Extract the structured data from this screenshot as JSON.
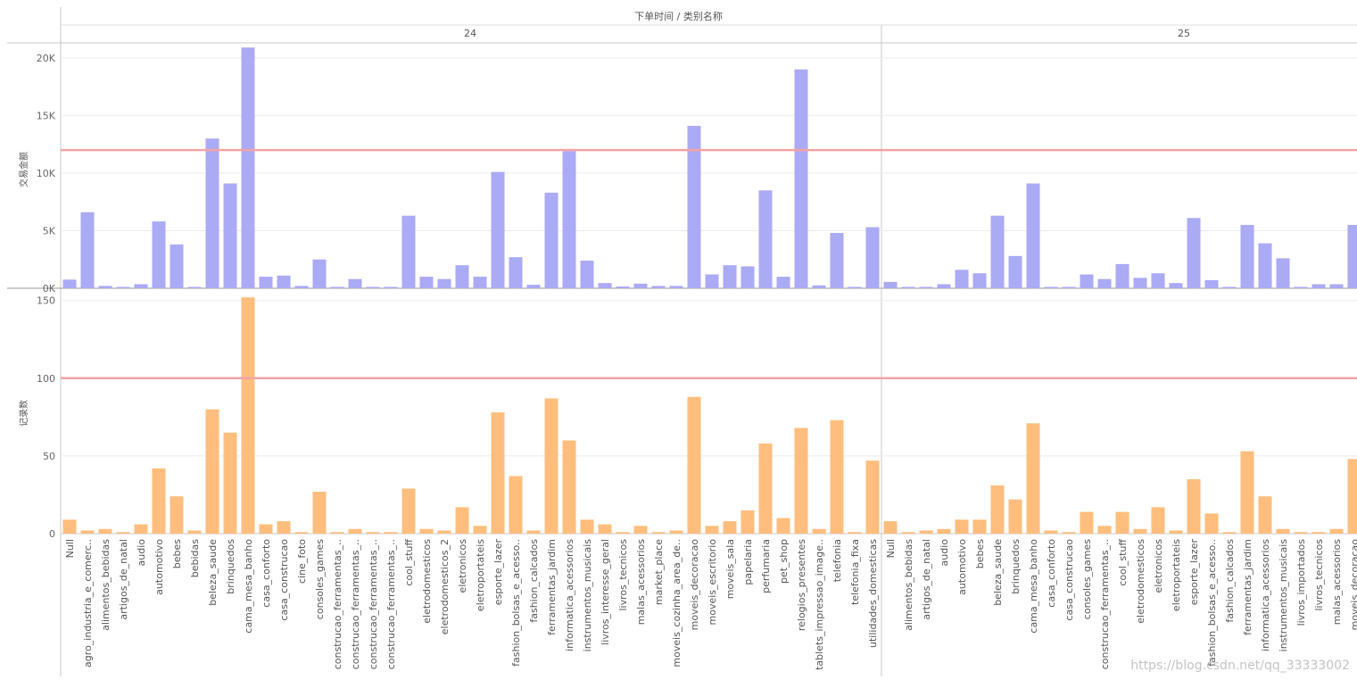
{
  "chart_data": {
    "type": "bar",
    "title": "下单时间 / 类别名称",
    "panels": [
      {
        "label": "24",
        "categories": [
          "Null",
          "agro_industria_e_comerc..",
          "alimentos_bebidas",
          "artigos_de_natal",
          "audio",
          "automotivo",
          "bebes",
          "bebidas",
          "beleza_saude",
          "brinquedos",
          "cama_mesa_banho",
          "casa_conforto",
          "casa_construcao",
          "cine_foto",
          "consoles_games",
          "construcao_ferramentas_..",
          "construcao_ferramentas_..",
          "construcao_ferramentas_..",
          "construcao_ferramentas_..",
          "cool_stuff",
          "eletrodomesticos",
          "eletrodomesticos_2",
          "eletronicos",
          "eletroportateis",
          "esporte_lazer",
          "fashion_bolsas_e_acesso..",
          "fashion_calcados",
          "ferramentas_jardim",
          "informatica_acessorios",
          "instrumentos_musicais",
          "livros_interesse_geral",
          "livros_tecnicos",
          "malas_acessorios",
          "market_place",
          "moveis_cozinha_area_de..",
          "moveis_decoracao",
          "moveis_escritorio",
          "moveis_sala",
          "papelaria",
          "perfumaria",
          "pet_shop",
          "relogios_presentes",
          "tablets_impressao_image..",
          "telefonia",
          "telefonia_fixa",
          "utilidades_domesticas"
        ],
        "series": [
          {
            "name": "交易金额",
            "values": [
              750,
              6600,
              200,
              100,
              350,
              5800,
              3800,
              100,
              13000,
              9100,
              20900,
              1000,
              1100,
              200,
              2500,
              50,
              800,
              80,
              100,
              6300,
              1000,
              800,
              2000,
              1000,
              10100,
              2700,
              300,
              8300,
              11900,
              2400,
              450,
              150,
              400,
              200,
              200,
              14100,
              1200,
              2000,
              1900,
              8500,
              1000,
              19000,
              250,
              4800,
              50,
              5300
            ]
          },
          {
            "name": "记录数",
            "values": [
              9,
              2,
              3,
              1,
              6,
              42,
              24,
              2,
              80,
              65,
              152,
              6,
              8,
              1,
              27,
              1,
              3,
              1,
              1,
              29,
              3,
              2,
              17,
              5,
              78,
              37,
              2,
              87,
              60,
              9,
              6,
              1,
              5,
              1,
              2,
              88,
              5,
              8,
              15,
              58,
              10,
              68,
              3,
              73,
              1,
              47
            ]
          }
        ]
      },
      {
        "label": "25",
        "categories": [
          "Null",
          "alimentos_bebidas",
          "artigos_de_natal",
          "audio",
          "automotivo",
          "bebes",
          "beleza_saude",
          "brinquedos",
          "cama_mesa_banho",
          "casa_conforto",
          "casa_construcao",
          "consoles_games",
          "construcao_ferramentas_..",
          "cool_stuff",
          "eletrodomesticos",
          "eletronicos",
          "eletroportateis",
          "esporte_lazer",
          "fashion_bolsas_e_acesso..",
          "fashion_calcados",
          "ferramentas_jardim",
          "informatica_acessorios",
          "instrumentos_musicais",
          "livros_importados",
          "livros_tecnicos",
          "malas_acessorios",
          "moveis_decoracao"
        ],
        "series": [
          {
            "name": "交易金额",
            "values": [
              550,
              50,
              100,
              350,
              1600,
              1300,
              6300,
              2800,
              9100,
              100,
              50,
              1200,
              800,
              2100,
              900,
              1300,
              450,
              6100,
              700,
              100,
              5500,
              3900,
              2600,
              50,
              350,
              350,
              5500
            ]
          },
          {
            "name": "记录数",
            "values": [
              8,
              1,
              2,
              3,
              9,
              9,
              31,
              22,
              71,
              2,
              1,
              14,
              5,
              14,
              3,
              17,
              2,
              35,
              13,
              1,
              53,
              24,
              3,
              1,
              1,
              3,
              48
            ]
          }
        ]
      }
    ],
    "axes": [
      {
        "ylabel": "交易金额",
        "ticks": [
          "0K",
          "5K",
          "10K",
          "15K",
          "20K"
        ],
        "ylim": [
          0,
          21000
        ],
        "reference_line": 12000
      },
      {
        "ylabel": "记录数",
        "ticks": [
          "0",
          "50",
          "100",
          "150"
        ],
        "ylim": [
          0,
          155
        ],
        "reference_line": 100
      }
    ],
    "colors": {
      "series1": "#aaaaf5",
      "series2": "#ffbe7d",
      "reference": "#f4a3a3",
      "grid": "#ececec",
      "divider": "#c8c8c8"
    },
    "watermark": "https://blog.csdn.net/qq_33333002"
  }
}
